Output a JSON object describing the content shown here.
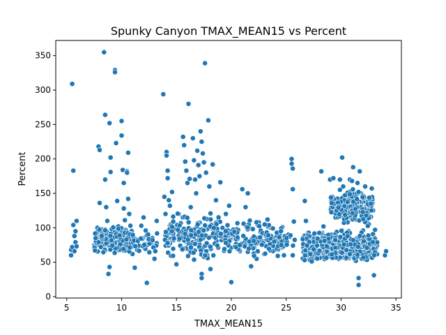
{
  "chart_data": {
    "type": "scatter",
    "title": "Spunky Canyon TMAX_MEAN15 vs Percent",
    "xlabel": "TMAX_MEAN15",
    "ylabel": "Percent",
    "xlim": [
      4.0,
      35.5
    ],
    "ylim": [
      -2,
      372
    ],
    "xticks": [
      5,
      10,
      15,
      20,
      25,
      30,
      35
    ],
    "yticks": [
      0,
      50,
      100,
      150,
      200,
      250,
      300,
      350
    ],
    "grid": false,
    "color": "#1f77b4",
    "points": [
      [
        5.4,
        60
      ],
      [
        5.4,
        68
      ],
      [
        5.5,
        72
      ],
      [
        5.5,
        309
      ],
      [
        5.6,
        183
      ],
      [
        5.6,
        104
      ],
      [
        5.7,
        88
      ],
      [
        5.8,
        79
      ],
      [
        5.8,
        95
      ],
      [
        5.9,
        110
      ],
      [
        5.9,
        73
      ],
      [
        5.7,
        66
      ],
      [
        7.6,
        70
      ],
      [
        7.7,
        82
      ],
      [
        7.7,
        91
      ],
      [
        7.8,
        100
      ],
      [
        7.9,
        218
      ],
      [
        8.0,
        213
      ],
      [
        8.0,
        136
      ],
      [
        8.1,
        96
      ],
      [
        8.2,
        87
      ],
      [
        8.3,
        76
      ],
      [
        8.4,
        355
      ],
      [
        8.5,
        264
      ],
      [
        8.5,
        170
      ],
      [
        8.6,
        130
      ],
      [
        8.7,
        110
      ],
      [
        8.7,
        84
      ],
      [
        8.8,
        33
      ],
      [
        8.9,
        43
      ],
      [
        8.9,
        252
      ],
      [
        9.0,
        202
      ],
      [
        9.0,
        181
      ],
      [
        9.1,
        98
      ],
      [
        9.2,
        80
      ],
      [
        9.3,
        72
      ],
      [
        9.4,
        329
      ],
      [
        9.4,
        326
      ],
      [
        9.5,
        223
      ],
      [
        9.6,
        139
      ],
      [
        9.7,
        102
      ],
      [
        9.8,
        92
      ],
      [
        9.9,
        86
      ],
      [
        10.0,
        255
      ],
      [
        10.0,
        234
      ],
      [
        10.1,
        184
      ],
      [
        10.2,
        165
      ],
      [
        10.2,
        128
      ],
      [
        10.3,
        111
      ],
      [
        10.4,
        92
      ],
      [
        10.5,
        182
      ],
      [
        10.5,
        180
      ],
      [
        10.6,
        209
      ],
      [
        10.6,
        142
      ],
      [
        10.7,
        120
      ],
      [
        10.8,
        103
      ],
      [
        10.9,
        78
      ],
      [
        11.0,
        62
      ],
      [
        11.2,
        42
      ],
      [
        11.4,
        68
      ],
      [
        11.6,
        74
      ],
      [
        11.8,
        103
      ],
      [
        12.0,
        115
      ],
      [
        12.2,
        96
      ],
      [
        12.3,
        20
      ],
      [
        12.5,
        65
      ],
      [
        12.8,
        85
      ],
      [
        13.0,
        55
      ],
      [
        13.2,
        110
      ],
      [
        13.8,
        294
      ],
      [
        13.9,
        145
      ],
      [
        14.0,
        120
      ],
      [
        14.1,
        210
      ],
      [
        14.1,
        205
      ],
      [
        14.2,
        183
      ],
      [
        14.2,
        172
      ],
      [
        14.3,
        140
      ],
      [
        14.4,
        132
      ],
      [
        14.6,
        152
      ],
      [
        14.8,
        100
      ],
      [
        15.0,
        47
      ],
      [
        15.2,
        120
      ],
      [
        15.4,
        88
      ],
      [
        15.6,
        232
      ],
      [
        15.7,
        220
      ],
      [
        15.8,
        196
      ],
      [
        15.9,
        183
      ],
      [
        16.0,
        165
      ],
      [
        16.1,
        280
      ],
      [
        16.2,
        171
      ],
      [
        16.3,
        130
      ],
      [
        16.5,
        230
      ],
      [
        16.6,
        198
      ],
      [
        16.7,
        170
      ],
      [
        16.8,
        150
      ],
      [
        16.9,
        212
      ],
      [
        17.0,
        191
      ],
      [
        17.1,
        175
      ],
      [
        17.2,
        240
      ],
      [
        17.3,
        225
      ],
      [
        17.4,
        208
      ],
      [
        17.5,
        195
      ],
      [
        17.6,
        339
      ],
      [
        17.7,
        180
      ],
      [
        17.8,
        60
      ],
      [
        17.9,
        256
      ],
      [
        18.0,
        160
      ],
      [
        18.1,
        40
      ],
      [
        17.3,
        33
      ],
      [
        17.3,
        27
      ],
      [
        18.3,
        192
      ],
      [
        18.6,
        140
      ],
      [
        19.0,
        166
      ],
      [
        19.2,
        100
      ],
      [
        19.5,
        120
      ],
      [
        19.8,
        132
      ],
      [
        20.0,
        21
      ],
      [
        20.2,
        86
      ],
      [
        20.5,
        98
      ],
      [
        20.8,
        66
      ],
      [
        21.0,
        156
      ],
      [
        21.3,
        130
      ],
      [
        21.5,
        150
      ],
      [
        21.8,
        44
      ],
      [
        22.0,
        82
      ],
      [
        22.3,
        55
      ],
      [
        22.5,
        108
      ],
      [
        23.0,
        62
      ],
      [
        23.3,
        112
      ],
      [
        23.6,
        100
      ],
      [
        24.0,
        68
      ],
      [
        24.4,
        90
      ],
      [
        24.8,
        60
      ],
      [
        25.2,
        90
      ],
      [
        25.5,
        200
      ],
      [
        25.5,
        193
      ],
      [
        25.6,
        186
      ],
      [
        25.6,
        156
      ],
      [
        25.7,
        109
      ],
      [
        25.6,
        60
      ],
      [
        26.7,
        139
      ],
      [
        26.8,
        110
      ],
      [
        27.0,
        93
      ],
      [
        27.2,
        70
      ],
      [
        27.5,
        56
      ],
      [
        28.0,
        78
      ],
      [
        28.2,
        182
      ],
      [
        28.4,
        102
      ],
      [
        28.6,
        88
      ],
      [
        28.8,
        70
      ],
      [
        29.0,
        170
      ],
      [
        29.2,
        142
      ],
      [
        29.3,
        172
      ],
      [
        29.5,
        115
      ],
      [
        29.6,
        94
      ],
      [
        29.8,
        55
      ],
      [
        29.9,
        170
      ],
      [
        30.1,
        202
      ],
      [
        30.2,
        160
      ],
      [
        30.4,
        140
      ],
      [
        30.5,
        125
      ],
      [
        30.6,
        108
      ],
      [
        30.7,
        95
      ],
      [
        30.8,
        170
      ],
      [
        31.0,
        168
      ],
      [
        31.1,
        188
      ],
      [
        31.2,
        150
      ],
      [
        31.3,
        130
      ],
      [
        31.4,
        112
      ],
      [
        31.5,
        165
      ],
      [
        31.6,
        72
      ],
      [
        31.6,
        27
      ],
      [
        31.6,
        17
      ],
      [
        31.7,
        182
      ],
      [
        31.8,
        150
      ],
      [
        31.9,
        120
      ],
      [
        32.0,
        96
      ],
      [
        32.1,
        60
      ],
      [
        32.2,
        160
      ],
      [
        32.3,
        140
      ],
      [
        32.4,
        104
      ],
      [
        32.5,
        88
      ],
      [
        32.6,
        66
      ],
      [
        32.7,
        128
      ],
      [
        32.8,
        157
      ],
      [
        32.9,
        82
      ],
      [
        33.0,
        31
      ],
      [
        33.1,
        97
      ],
      [
        33.2,
        70
      ],
      [
        34.0,
        60
      ],
      [
        34.1,
        66
      ]
    ],
    "clusters": [
      {
        "x": [
          7.5,
          11.0
        ],
        "y": [
          60,
          105
        ],
        "n": 220
      },
      {
        "x": [
          11.0,
          13.3
        ],
        "y": [
          55,
          100
        ],
        "n": 35
      },
      {
        "x": [
          13.8,
          19.0
        ],
        "y": [
          48,
          130
        ],
        "n": 190
      },
      {
        "x": [
          19.0,
          24.8
        ],
        "y": [
          50,
          115
        ],
        "n": 150
      },
      {
        "x": [
          24.8,
          25.8
        ],
        "y": [
          57,
          100
        ],
        "n": 12
      },
      {
        "x": [
          26.5,
          33.3
        ],
        "y": [
          43,
          100
        ],
        "n": 520
      },
      {
        "x": [
          29.0,
          33.0
        ],
        "y": [
          95,
          165
        ],
        "n": 180
      }
    ]
  }
}
